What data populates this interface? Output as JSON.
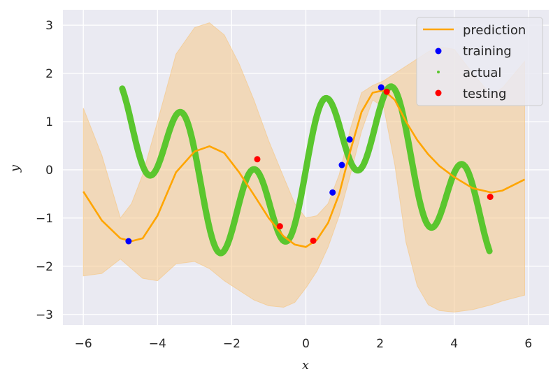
{
  "chart_data": {
    "type": "line",
    "title": "",
    "xlabel": "x",
    "ylabel": "y",
    "xlim": [
      -6.55,
      6.55
    ],
    "ylim": [
      -3.22,
      3.32
    ],
    "xticks": [
      -6,
      -4,
      -2,
      0,
      2,
      4,
      6
    ],
    "yticks": [
      -3,
      -2,
      -1,
      0,
      1,
      2,
      3
    ],
    "xtick_labels": [
      "−6",
      "−4",
      "−2",
      "0",
      "2",
      "4",
      "6"
    ],
    "ytick_labels": [
      "−3",
      "−2",
      "−1",
      "0",
      "1",
      "2",
      "3"
    ],
    "grid": true,
    "legend_position": "upper right",
    "colors": {
      "prediction": "#ffa500",
      "band": "#f5c98a",
      "training": "#0000ff",
      "actual": "#5ac62e",
      "testing": "#ff0000",
      "plot_background": "#eaeaf2"
    },
    "series": [
      {
        "name": "prediction",
        "kind": "line",
        "x": [
          -6,
          -5.5,
          -5,
          -4.7,
          -4.4,
          -4.0,
          -3.5,
          -3.0,
          -2.6,
          -2.2,
          -1.8,
          -1.4,
          -1.0,
          -0.6,
          -0.3,
          0.0,
          0.3,
          0.6,
          0.9,
          1.2,
          1.5,
          1.8,
          2.1,
          2.4,
          2.7,
          3.0,
          3.3,
          3.6,
          4.0,
          4.5,
          5.0,
          5.3,
          5.9
        ],
        "y": [
          -0.45,
          -1.05,
          -1.42,
          -1.48,
          -1.42,
          -0.95,
          -0.05,
          0.38,
          0.49,
          0.35,
          -0.05,
          -0.52,
          -1.0,
          -1.38,
          -1.55,
          -1.6,
          -1.45,
          -1.1,
          -0.5,
          0.4,
          1.2,
          1.6,
          1.65,
          1.45,
          1.0,
          0.62,
          0.32,
          0.08,
          -0.15,
          -0.38,
          -0.47,
          -0.43,
          -0.2
        ]
      },
      {
        "name": "uncertainty band",
        "kind": "band",
        "x": [
          -6,
          -5.5,
          -5,
          -4.7,
          -4.4,
          -4.0,
          -3.5,
          -3.0,
          -2.6,
          -2.2,
          -1.8,
          -1.4,
          -1.0,
          -0.6,
          -0.3,
          0.0,
          0.3,
          0.6,
          0.9,
          1.2,
          1.5,
          1.8,
          2.1,
          2.4,
          2.7,
          3.0,
          3.3,
          3.6,
          4.0,
          4.5,
          5.0,
          5.3,
          5.9
        ],
        "upper": [
          1.28,
          0.3,
          -1.0,
          -0.7,
          -0.1,
          1.0,
          2.4,
          2.95,
          3.05,
          2.8,
          2.2,
          1.45,
          0.6,
          -0.15,
          -0.7,
          -1.0,
          -0.95,
          -0.7,
          -0.1,
          0.85,
          1.6,
          1.75,
          1.85,
          2.0,
          2.15,
          2.3,
          2.45,
          2.55,
          2.5,
          2.0,
          1.55,
          1.7,
          2.25
        ],
        "lower": [
          -2.2,
          -2.15,
          -1.85,
          -2.05,
          -2.25,
          -2.3,
          -1.95,
          -1.9,
          -2.05,
          -2.3,
          -2.5,
          -2.7,
          -2.82,
          -2.85,
          -2.75,
          -2.45,
          -2.1,
          -1.6,
          -0.95,
          -0.1,
          0.8,
          1.45,
          1.3,
          0.1,
          -1.5,
          -2.4,
          -2.8,
          -2.92,
          -2.95,
          -2.9,
          -2.8,
          -2.72,
          -2.6
        ]
      },
      {
        "name": "actual",
        "kind": "curve",
        "x_range": [
          -4.95,
          4.95
        ],
        "formula": "sin(x) + sin(10x/3)"
      },
      {
        "name": "training",
        "kind": "scatter",
        "points": [
          [
            -4.78,
            -1.48
          ],
          [
            0.72,
            -0.47
          ],
          [
            0.97,
            0.1
          ],
          [
            1.18,
            0.63
          ],
          [
            2.03,
            1.71
          ]
        ]
      },
      {
        "name": "testing",
        "kind": "scatter",
        "points": [
          [
            -1.31,
            0.22
          ],
          [
            -0.7,
            -1.17
          ],
          [
            0.2,
            -1.47
          ],
          [
            2.18,
            1.62
          ],
          [
            4.97,
            -0.56
          ]
        ]
      }
    ],
    "legend": [
      {
        "label": "prediction",
        "marker": "line"
      },
      {
        "label": "training",
        "marker": "dot"
      },
      {
        "label": "actual",
        "marker": "small-dot"
      },
      {
        "label": "testing",
        "marker": "dot"
      }
    ]
  }
}
